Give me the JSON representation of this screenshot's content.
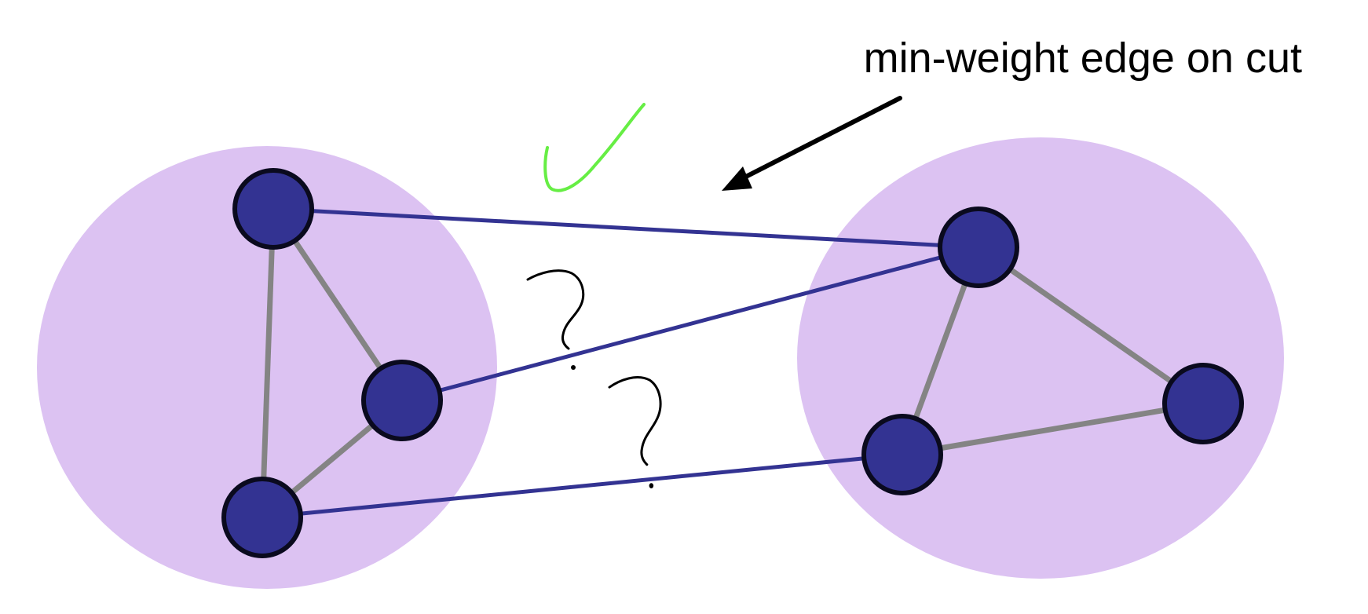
{
  "annotation": {
    "label": "min-weight edge on cut",
    "arrow_icon": "arrow-left-down-icon",
    "check_icon": "checkmark-icon",
    "question_icon": "question-mark-icon"
  },
  "colors": {
    "cluster_fill": "#dcc2f2",
    "node_fill": "#333392",
    "node_stroke": "#0a0a1e",
    "cut_edge": "#333392",
    "internal_edge": "#848484",
    "arrow": "#000000",
    "check": "#66ee44",
    "question": "#000000"
  },
  "clusters": [
    {
      "id": "left"
    },
    {
      "id": "right"
    }
  ],
  "nodes": [
    {
      "id": "L-top"
    },
    {
      "id": "L-mid"
    },
    {
      "id": "L-bottom"
    },
    {
      "id": "R-top"
    },
    {
      "id": "R-right"
    },
    {
      "id": "R-bottom"
    }
  ],
  "edges": [
    {
      "from": "L-top",
      "to": "L-mid",
      "kind": "internal"
    },
    {
      "from": "L-top",
      "to": "L-bottom",
      "kind": "internal"
    },
    {
      "from": "L-mid",
      "to": "L-bottom",
      "kind": "internal"
    },
    {
      "from": "R-top",
      "to": "R-right",
      "kind": "internal"
    },
    {
      "from": "R-top",
      "to": "R-bottom",
      "kind": "internal"
    },
    {
      "from": "R-bottom",
      "to": "R-right",
      "kind": "internal"
    },
    {
      "from": "L-top",
      "to": "R-top",
      "kind": "cut",
      "mark": "check"
    },
    {
      "from": "L-mid",
      "to": "R-top",
      "kind": "cut",
      "mark": "question"
    },
    {
      "from": "L-bottom",
      "to": "R-bottom",
      "kind": "cut",
      "mark": "question"
    }
  ]
}
